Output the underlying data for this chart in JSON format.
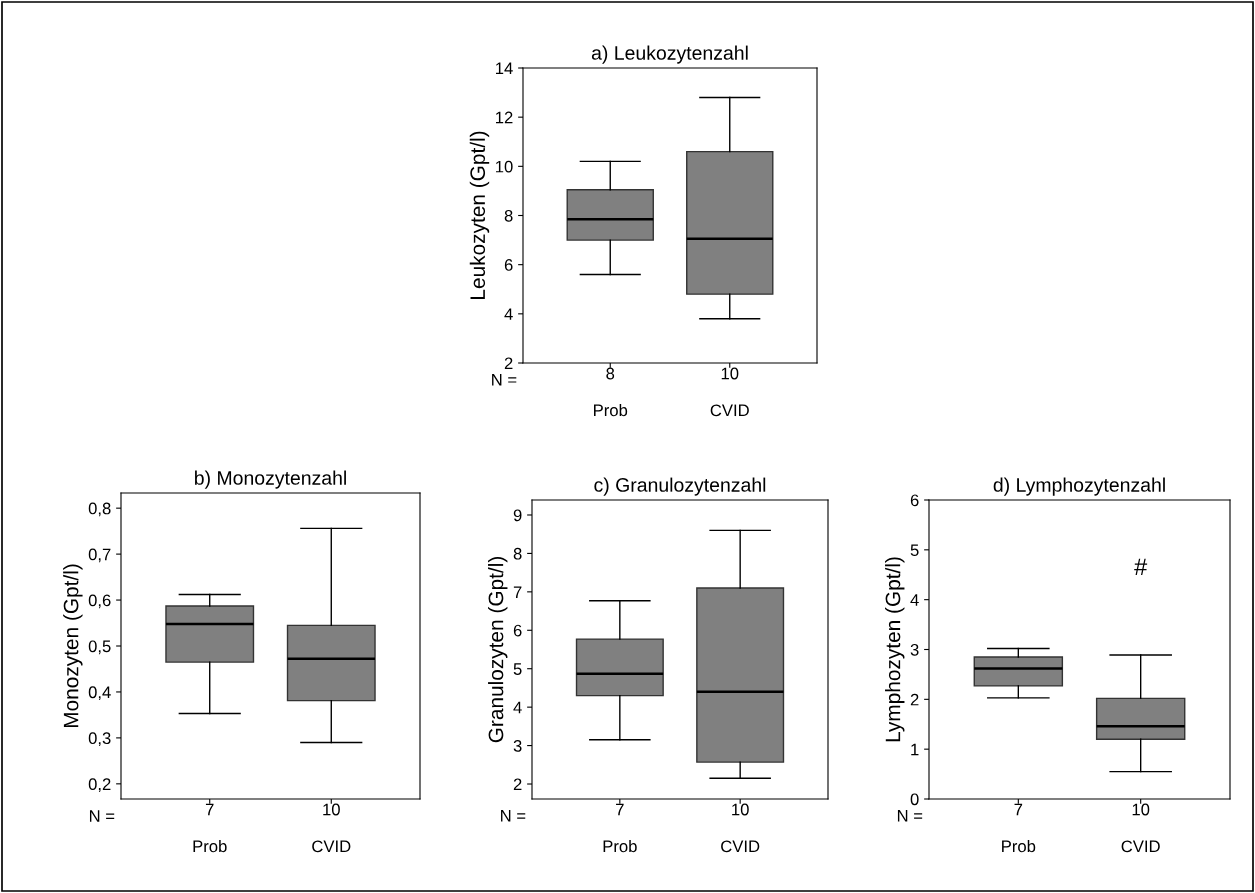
{
  "chart_data": [
    {
      "type": "box",
      "title": "a) Leukozytenzahl",
      "ylabel": "Leukozyten (Gpt/l)",
      "categories": [
        "Prob",
        "CVID"
      ],
      "color": "#808080",
      "ylim": [
        2,
        14
      ],
      "yticks": [
        2,
        4,
        6,
        8,
        10,
        12,
        14
      ],
      "boxes": [
        {
          "low": 5.6,
          "q1": 7.0,
          "median": 7.85,
          "q3": 9.05,
          "high": 10.2
        },
        {
          "low": 3.8,
          "q1": 4.8,
          "median": 7.05,
          "q3": 10.6,
          "high": 12.8
        }
      ],
      "annotations": [
        "N =",
        "8",
        "10"
      ]
    },
    {
      "type": "box",
      "title": "b) Monozytenzahl",
      "ylabel": "Monozyten (Gpt/l)",
      "categories": [
        "Prob",
        "CVID"
      ],
      "color": "#808080",
      "ylim": [
        0.167,
        0.833
      ],
      "yticks": [
        {
          "value": 0.2,
          "label": "0,2"
        },
        {
          "value": 0.3,
          "label": "0,3"
        },
        {
          "value": 0.4,
          "label": "0,4"
        },
        {
          "value": 0.5,
          "label": "0,5"
        },
        {
          "value": 0.6,
          "label": "0,6"
        },
        {
          "value": 0.7,
          "label": "0,7"
        },
        {
          "value": 0.8,
          "label": "0,8"
        }
      ],
      "boxes": [
        {
          "low": 0.353,
          "q1": 0.465,
          "median": 0.548,
          "q3": 0.587,
          "high": 0.612
        },
        {
          "low": 0.29,
          "q1": 0.381,
          "median": 0.472,
          "q3": 0.545,
          "high": 0.756
        }
      ],
      "annotations": [
        "N =",
        "7",
        "10"
      ]
    },
    {
      "type": "box",
      "title": "c) Granulozytenzahl",
      "ylabel": "Granulozyten (Gpt/l)",
      "categories": [
        "Prob",
        "CVID"
      ],
      "color": "#808080",
      "ylim": [
        1.61,
        9.39
      ],
      "yticks": [
        2,
        3,
        4,
        5,
        6,
        7,
        8,
        9
      ],
      "boxes": [
        {
          "low": 3.15,
          "q1": 4.3,
          "median": 4.87,
          "q3": 5.77,
          "high": 6.77
        },
        {
          "low": 2.15,
          "q1": 2.57,
          "median": 4.4,
          "q3": 7.1,
          "high": 8.6
        }
      ],
      "annotations": [
        "N =",
        "7",
        "10"
      ]
    },
    {
      "type": "box",
      "title": "d) Lymphozytenzahl",
      "ylabel": "Lymphozyten (Gpt/l)",
      "categories": [
        "Prob",
        "CVID"
      ],
      "color": "#808080",
      "ylim": [
        0,
        6
      ],
      "yticks": [
        0,
        1,
        2,
        3,
        4,
        5,
        6
      ],
      "boxes": [
        {
          "low": 2.03,
          "q1": 2.27,
          "median": 2.62,
          "q3": 2.85,
          "high": 3.02
        },
        {
          "low": 0.55,
          "q1": 1.2,
          "median": 1.46,
          "q3": 2.02,
          "high": 2.89
        }
      ],
      "annotations": [
        "N =",
        "7",
        "10",
        "#"
      ]
    }
  ]
}
